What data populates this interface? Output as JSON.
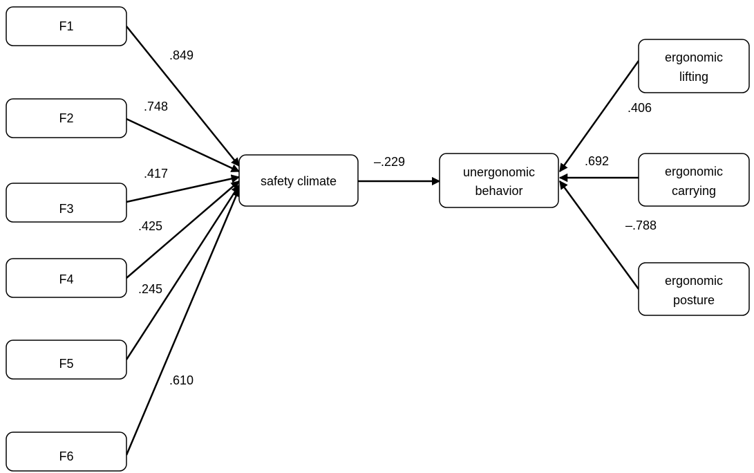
{
  "diagram": {
    "factors": [
      {
        "id": "f1",
        "label": "F1"
      },
      {
        "id": "f2",
        "label": "F2"
      },
      {
        "id": "f3",
        "label": "F3"
      },
      {
        "id": "f4",
        "label": "F4"
      },
      {
        "id": "f5",
        "label": "F5"
      },
      {
        "id": "f6",
        "label": "F6"
      }
    ],
    "safety_climate": {
      "label": "safety climate"
    },
    "unergonomic_behavior": {
      "line1": "unergonomic",
      "line2": "behavior"
    },
    "ergonomic": [
      {
        "id": "lifting",
        "line1": "ergonomic",
        "line2": "lifting"
      },
      {
        "id": "carrying",
        "line1": "ergonomic",
        "line2": "carrying"
      },
      {
        "id": "posture",
        "line1": "ergonomic",
        "line2": "posture"
      }
    ],
    "coefficients": {
      "f1": ".849",
      "f2": ".748",
      "f3": ".417",
      "f4": ".425",
      "f5": ".245",
      "f6": ".610",
      "safety_to_behavior": "–.229",
      "lifting": ".406",
      "carrying": ".692",
      "posture": "–.788"
    },
    "colors": {
      "line": "#000000",
      "box_fill": "#ffffff",
      "text": "#000000"
    }
  }
}
